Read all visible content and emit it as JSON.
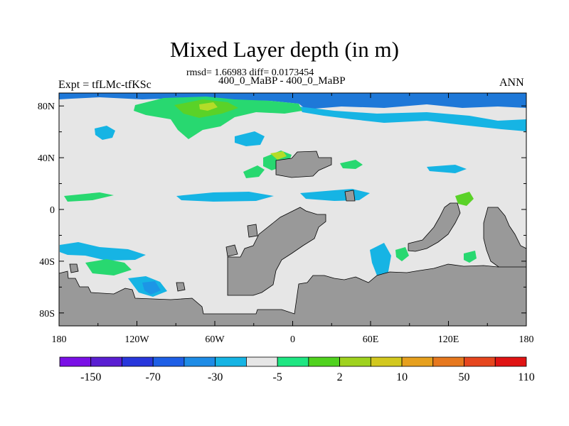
{
  "title": "Mixed Layer depth (in m)",
  "stats": "rmsd= 1.66983 diff= 0.0173454",
  "periods": "400_0_MaBP - 400_0_MaBP",
  "experiment": "Expt = tfLMc-tfKSc",
  "season": "ANN",
  "map": {
    "projection": "cylindrical equidistant",
    "lon_range": [
      -180,
      180
    ],
    "lat_range": [
      -90,
      90
    ],
    "x_tick_labels": [
      "180",
      "120W",
      "60W",
      "0",
      "60E",
      "120E",
      "180"
    ],
    "y_tick_labels": [
      "80N",
      "40N",
      "0",
      "40S",
      "80S"
    ],
    "colors": {
      "background_field": "#e6e6e6",
      "land": "#999999",
      "deep_blue": "#1e78d8",
      "light_blue": "#16b4e4",
      "mid_blue": "#1c96e6",
      "light_green": "#28d870",
      "green": "#5ad228",
      "yellow_green": "#b4dc28"
    }
  },
  "colorbar": {
    "colors": [
      "#7a10e6",
      "#5a1ed2",
      "#2837dc",
      "#1e5fe6",
      "#1e8ce6",
      "#16b4e4",
      "#e6e6e6",
      "#1ee682",
      "#50d21e",
      "#9fd21e",
      "#d2c81e",
      "#e6a01e",
      "#e6781e",
      "#e6461e",
      "#e01414"
    ],
    "labels": [
      "-150",
      "-70",
      "-30",
      "-5",
      "2",
      "10",
      "50",
      "110"
    ]
  }
}
